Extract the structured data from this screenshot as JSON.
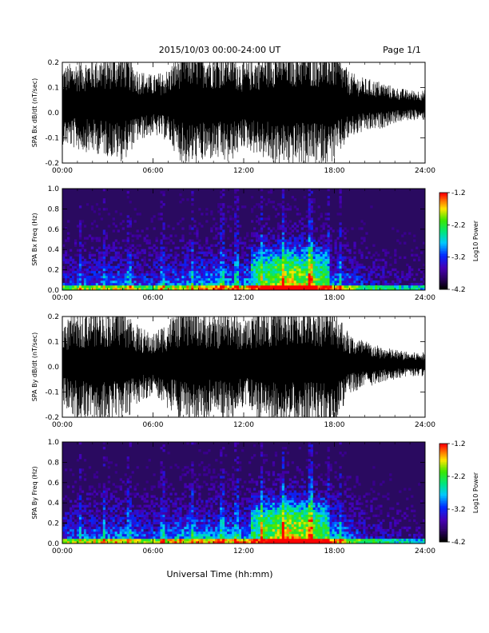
{
  "header": {
    "date_range": "2015/10/03  00:00-24:00 UT",
    "page": "Page 1/1"
  },
  "x_axis_label": "Universal Time (hh:mm)",
  "chart_data": [
    {
      "type": "line",
      "ylabel": "SPA Bx dB/dt (nT/sec)",
      "xlim": [
        0,
        24
      ],
      "ylim": [
        -0.2,
        0.2
      ],
      "x_ticks": [
        "00:00",
        "06:00",
        "12:00",
        "18:00",
        "24:00"
      ],
      "y_ticks": [
        "-0.2",
        "-0.1",
        "0.0",
        "0.1",
        "0.2"
      ],
      "envelope_hours": [
        0,
        1,
        2,
        3,
        4,
        5,
        6,
        7,
        8,
        9,
        10,
        11,
        12,
        13,
        14,
        15,
        16,
        17,
        18,
        19,
        20,
        21,
        22,
        23,
        24
      ],
      "envelope_amplitude": [
        0.13,
        0.15,
        0.16,
        0.17,
        0.19,
        0.12,
        0.1,
        0.12,
        0.2,
        0.2,
        0.18,
        0.2,
        0.14,
        0.17,
        0.2,
        0.2,
        0.2,
        0.2,
        0.19,
        0.11,
        0.09,
        0.08,
        0.06,
        0.05,
        0.05
      ],
      "center": 0.03
    },
    {
      "type": "heatmap",
      "ylabel": "SPA Bx Freq (Hz)",
      "xlim": [
        0,
        24
      ],
      "ylim": [
        0,
        1
      ],
      "x_ticks": [
        "00:00",
        "06:00",
        "12:00",
        "18:00",
        "24:00"
      ],
      "y_ticks": [
        "0.0",
        "0.2",
        "0.4",
        "0.6",
        "0.8",
        "1.0"
      ],
      "colorbar": {
        "label": "Log10 Power",
        "range": [
          -4.2,
          -1.2
        ],
        "ticks": [
          "-1.2",
          "-2.2",
          "-3.2",
          "-4.2"
        ]
      },
      "activity_hours": [
        0,
        2,
        4,
        6,
        8,
        10,
        12,
        14,
        15,
        16,
        18,
        20,
        22,
        24
      ],
      "activity_level": [
        0.35,
        0.4,
        0.45,
        0.35,
        0.5,
        0.55,
        0.5,
        0.75,
        0.85,
        0.8,
        0.55,
        0.3,
        0.2,
        0.15
      ],
      "vertical_streaks_hours": [
        1.2,
        2.8,
        4.4,
        6.6,
        8.6,
        10.6,
        11.5,
        13.2,
        14.6,
        16.4,
        17.6,
        18.4
      ]
    },
    {
      "type": "line",
      "ylabel": "SPA By dB/dt (nT/sec)",
      "xlim": [
        0,
        24
      ],
      "ylim": [
        -0.2,
        0.2
      ],
      "x_ticks": [
        "00:00",
        "06:00",
        "12:00",
        "18:00",
        "24:00"
      ],
      "y_ticks": [
        "-0.2",
        "-0.1",
        "0.0",
        "0.1",
        "0.2"
      ],
      "envelope_hours": [
        0,
        1,
        2,
        3,
        4,
        5,
        6,
        7,
        8,
        9,
        10,
        11,
        12,
        13,
        14,
        15,
        16,
        17,
        18,
        19,
        20,
        21,
        22,
        23,
        24
      ],
      "envelope_amplitude": [
        0.14,
        0.18,
        0.2,
        0.19,
        0.2,
        0.13,
        0.1,
        0.15,
        0.2,
        0.2,
        0.16,
        0.2,
        0.14,
        0.2,
        0.2,
        0.2,
        0.2,
        0.2,
        0.2,
        0.1,
        0.08,
        0.06,
        0.05,
        0.04,
        0.04
      ],
      "center": 0.01
    },
    {
      "type": "heatmap",
      "ylabel": "SPA By Freq (Hz)",
      "xlim": [
        0,
        24
      ],
      "ylim": [
        0,
        1
      ],
      "x_ticks": [
        "00:00",
        "06:00",
        "12:00",
        "18:00",
        "24:00"
      ],
      "y_ticks": [
        "0.0",
        "0.2",
        "0.4",
        "0.6",
        "0.8",
        "1.0"
      ],
      "colorbar": {
        "label": "Log10 Power",
        "range": [
          -4.2,
          -1.2
        ],
        "ticks": [
          "-1.2",
          "-2.2",
          "-3.2",
          "-4.2"
        ]
      },
      "activity_hours": [
        0,
        2,
        4,
        6,
        8,
        10,
        12,
        14,
        15,
        16,
        18,
        20,
        22,
        24
      ],
      "activity_level": [
        0.4,
        0.45,
        0.5,
        0.4,
        0.55,
        0.55,
        0.5,
        0.8,
        0.9,
        0.85,
        0.6,
        0.3,
        0.2,
        0.15
      ],
      "vertical_streaks_hours": [
        1.2,
        2.8,
        4.4,
        6.6,
        8.6,
        10.6,
        11.5,
        13.2,
        14.6,
        16.4,
        17.6,
        18.4
      ]
    }
  ]
}
